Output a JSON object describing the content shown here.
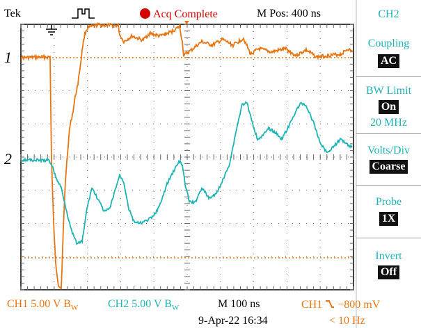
{
  "header": {
    "brand": "Tek",
    "acq_status": "Acq Complete",
    "acq_dot_color": "#d40000",
    "m_pos": "M Pos: 400 ns",
    "trigger_icon": "trigger-pulse-icon",
    "ground_icon": "ground-icon"
  },
  "channels": {
    "ch1_marker": "1",
    "ch2_marker": "2",
    "ch1_color": "#e87511",
    "ch2_color": "#1fb3b5"
  },
  "side_menu": {
    "title": "CH2",
    "items": [
      {
        "label": "Coupling",
        "value": "AC"
      },
      {
        "label": "BW Limit",
        "value": "On",
        "sub": "20 MHz"
      },
      {
        "label": "Volts/Div",
        "value": "Coarse"
      },
      {
        "label": "Probe",
        "value": "1X"
      },
      {
        "label": "Invert",
        "value": "Off"
      }
    ]
  },
  "footer": {
    "ch1_scale": "CH1 5.00 V",
    "ch2_scale": "CH2 5.00 V",
    "bw_symbol_main": "B",
    "bw_symbol_sub": "W",
    "timebase": "M 100 ns",
    "trigger_source": "CH1",
    "trigger_slope_icon": "falling-edge-icon",
    "trigger_level": "−800 mV",
    "date_time": "9-Apr-22 16:34",
    "trigger_freq": "< 10 Hz"
  }
}
